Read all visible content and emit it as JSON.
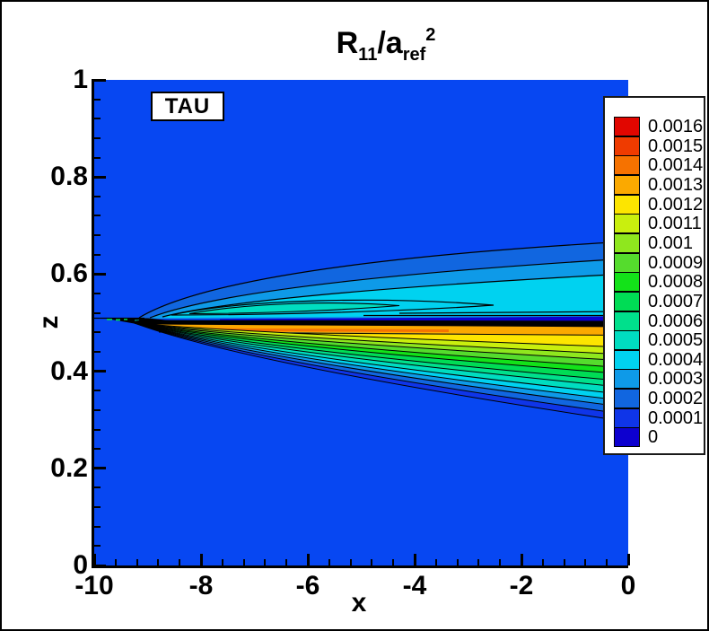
{
  "title": {
    "r": "R",
    "r_sub": "11",
    "slash_a": "/a",
    "a_sub": "ref",
    "exp": "2"
  },
  "annotation": {
    "label": "TAU"
  },
  "axes": {
    "x": {
      "label": "x",
      "tick_labels": [
        "-10",
        "-8",
        "-6",
        "-4",
        "-2",
        "0"
      ]
    },
    "z": {
      "label": "z",
      "tick_labels": [
        "1",
        "0.8",
        "0.6",
        "0.4",
        "0.2",
        "0"
      ]
    }
  },
  "chart_data": {
    "type": "contour",
    "title": "R11/aref^2",
    "xlabel": "x",
    "ylabel": "z",
    "xlim": [
      -10,
      0
    ],
    "ylim": [
      0,
      1
    ],
    "annotation": "TAU",
    "legend_position": "right",
    "levels": [
      0,
      0.0001,
      0.0002,
      0.0003,
      0.0004,
      0.0005,
      0.0006,
      0.0007,
      0.0008,
      0.0009,
      0.001,
      0.0011,
      0.0012,
      0.0013,
      0.0014,
      0.0015,
      0.0016
    ],
    "legend_labels_top_down": [
      "0.0016",
      "0.0015",
      "0.0014",
      "0.0013",
      "0.0012",
      "0.0011",
      "0.001",
      "0.0009",
      "0.0008",
      "0.0007",
      "0.0006",
      "0.0005",
      "0.0004",
      "0.0003",
      "0.0002",
      "0.0001",
      "0"
    ],
    "level_colors_top_down": [
      "#e10600",
      "#ef3b00",
      "#f67200",
      "#fba900",
      "#fde500",
      "#c9ef0e",
      "#8fe71e",
      "#55dc2d",
      "#13e219",
      "#00dc55",
      "#00e08c",
      "#00ddc0",
      "#00d2f0",
      "#0e9ae8",
      "#1166e0",
      "#0f35e8",
      "#0d00cf"
    ],
    "plot_background": "#0747f2",
    "description": "Flooded contour plot of turbulent stress R11/aref^2 in a wake, spreading from an apex near x=-9.5, z=0.5 toward x=0; peak (orange/yellow) values just below the centerline z=0.5, cyan lobe above the centerline, near-zero dark band on the centerline."
  }
}
